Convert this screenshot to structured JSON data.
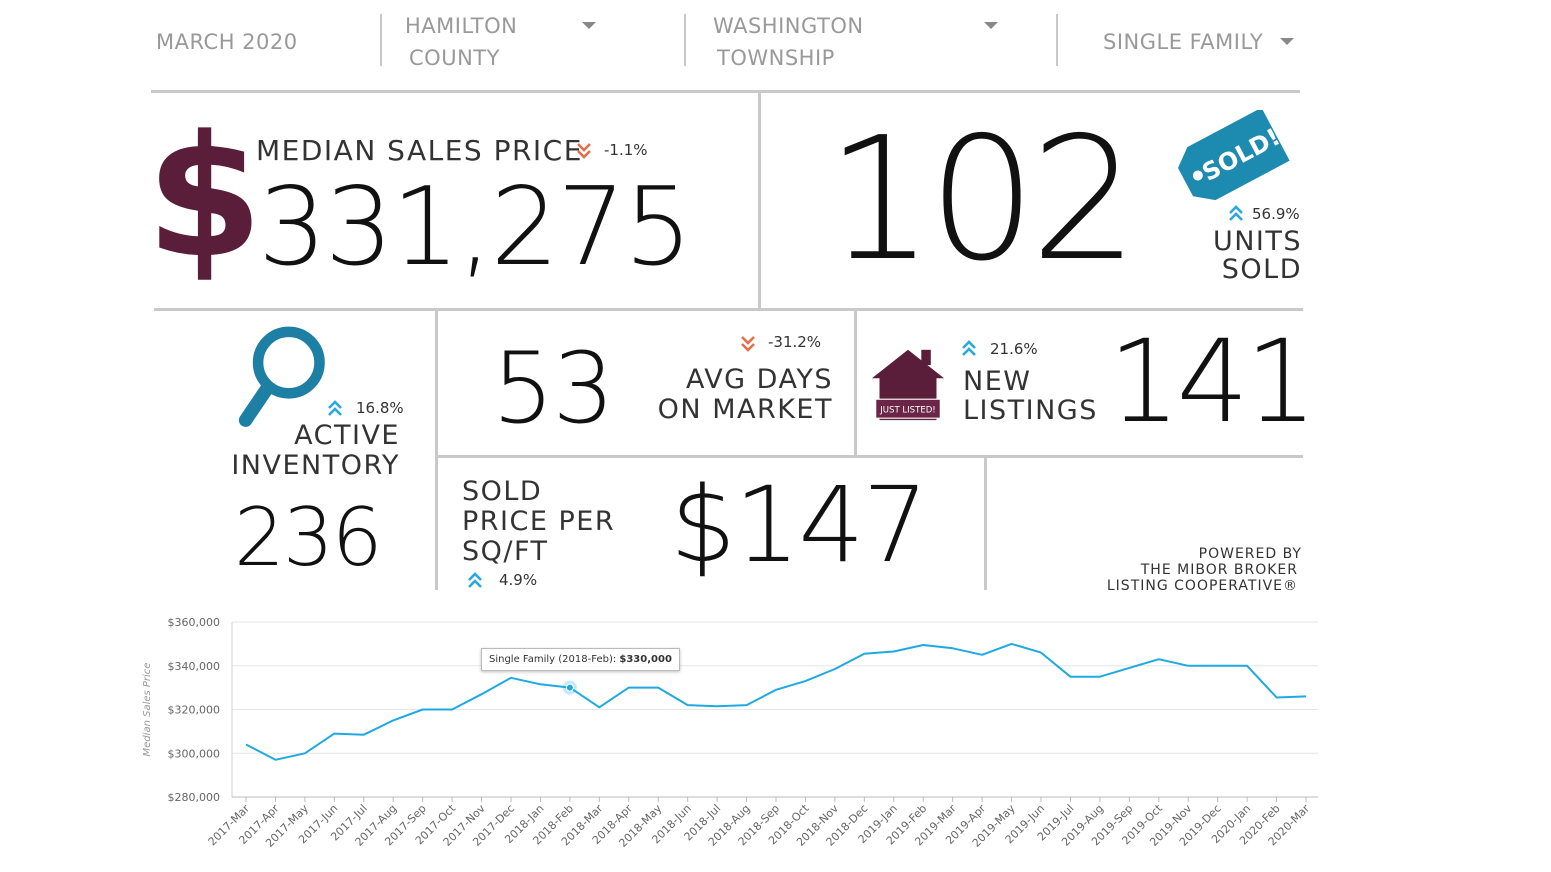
{
  "filters": {
    "period": "MARCH 2020",
    "county_line1": "HAMILTON",
    "county_line2": "COUNTY",
    "township_line1": "WASHINGTON",
    "township_line2": "TOWNSHIP",
    "property_type": "SINGLE FAMILY"
  },
  "colors": {
    "brand_maroon": "#5a1d3a",
    "accent_blue": "#1fa9e1",
    "tag_teal": "#1d8bb0",
    "down_orange": "#e36f4a",
    "up_blue": "#29a8e0"
  },
  "median_sales_price": {
    "label": "MEDIAN SALES PRICE",
    "change": "-1.1%",
    "direction": "down",
    "value": "331,275",
    "icon": "dollar-sign-icon"
  },
  "units_sold": {
    "value": "102",
    "label_line1": "UNITS",
    "label_line2": "SOLD",
    "change": "56.9%",
    "direction": "up",
    "icon": "sold-tag-icon",
    "tag_text": "SOLD!"
  },
  "active_inventory": {
    "change": "16.8%",
    "direction": "up",
    "label_line1": "ACTIVE",
    "label_line2": "INVENTORY",
    "value": "236",
    "icon": "magnifier-icon"
  },
  "avg_days_on_market": {
    "value": "53",
    "change": "-31.2%",
    "direction": "down",
    "label_line1": "AVG DAYS",
    "label_line2": "ON MARKET"
  },
  "new_listings": {
    "change": "21.6%",
    "direction": "up",
    "label_line1": "NEW",
    "label_line2": "LISTINGS",
    "value": "141",
    "icon": "house-icon",
    "house_sign": "JUST LISTED!"
  },
  "price_per_sqft": {
    "label_line1": "SOLD",
    "label_line2": "PRICE PER",
    "label_line3": "SQ/FT",
    "change": "4.9%",
    "direction": "up",
    "value": "$147"
  },
  "powered_by": {
    "line1": "POWERED BY",
    "line2": "THE MIBOR BROKER",
    "line3": "LISTING COOPERATIVE®"
  },
  "tooltip": {
    "prefix": "Single Family (2018-Feb): ",
    "value": "$330,000"
  },
  "chart_data": {
    "type": "line",
    "ylabel": "Median Sales Price",
    "xlabel": "",
    "ylim": [
      280000,
      360000
    ],
    "yticks": [
      280000,
      300000,
      320000,
      340000,
      360000
    ],
    "ytick_labels": [
      "$280,000",
      "$300,000",
      "$320,000",
      "$340,000",
      "$360,000"
    ],
    "grid": true,
    "categories": [
      "2017-Mar",
      "2017-Apr",
      "2017-May",
      "2017-Jun",
      "2017-Jul",
      "2017-Aug",
      "2017-Sep",
      "2017-Oct",
      "2017-Nov",
      "2017-Dec",
      "2018-Jan",
      "2018-Feb",
      "2018-Mar",
      "2018-Apr",
      "2018-May",
      "2018-Jun",
      "2018-Jul",
      "2018-Aug",
      "2018-Sep",
      "2018-Oct",
      "2018-Nov",
      "2018-Dec",
      "2019-Jan",
      "2019-Feb",
      "2019-Mar",
      "2019-Apr",
      "2019-May",
      "2019-Jun",
      "2019-Jul",
      "2019-Aug",
      "2019-Sep",
      "2019-Oct",
      "2019-Nov",
      "2019-Dec",
      "2020-Jan",
      "2020-Feb",
      "2020-Mar"
    ],
    "series": [
      {
        "name": "Single Family",
        "color": "#1fa9e1",
        "values": [
          304000,
          297000,
          300000,
          309000,
          308500,
          315000,
          320000,
          320000,
          327000,
          334500,
          331500,
          330000,
          321000,
          330000,
          330000,
          322000,
          321500,
          322000,
          329000,
          333000,
          338500,
          345500,
          346500,
          349500,
          348000,
          345000,
          350000,
          346000,
          335000,
          335000,
          339000,
          343000,
          340000,
          340000,
          340000,
          325500,
          326000
        ]
      }
    ],
    "highlight_index": 11
  }
}
